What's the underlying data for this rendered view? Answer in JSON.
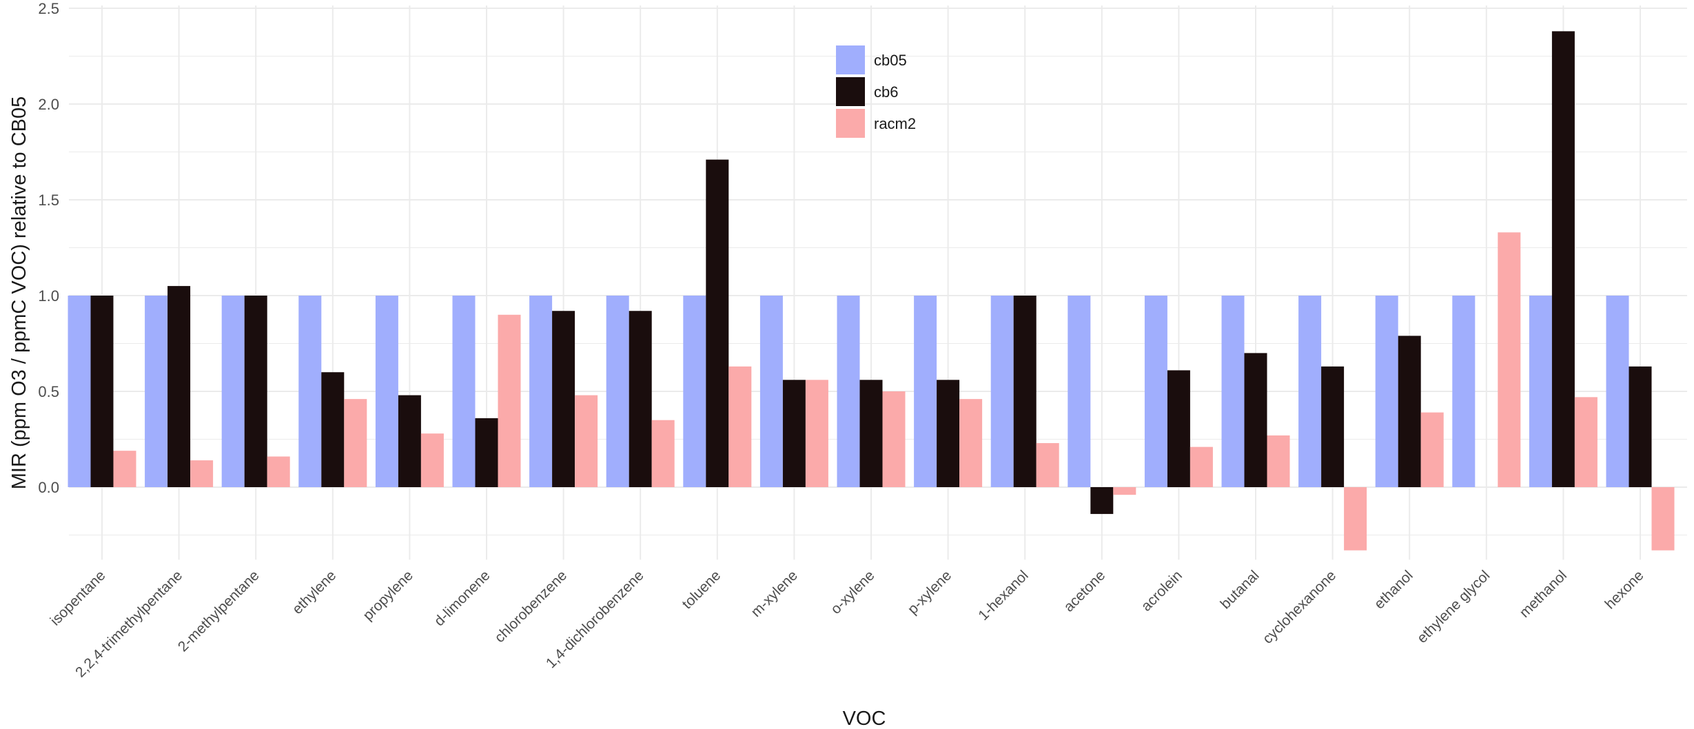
{
  "chart_data": {
    "type": "bar",
    "title": "",
    "xlabel": "VOC",
    "ylabel": "MIR (ppm O3 / ppmC VOC) relative to CB05",
    "ylim": [
      -0.35,
      2.5
    ],
    "yticks": [
      "0.0",
      "0.5",
      "1.0",
      "1.5",
      "2.0",
      "2.5"
    ],
    "grid": true,
    "legend_position": "top-center",
    "categories": [
      "isopentane",
      "2,2,4-trimethylpentane",
      "2-methylpentane",
      "ethylene",
      "propylene",
      "d-limonene",
      "chlorobenzene",
      "1,4-dichlorobenzene",
      "toluene",
      "m-xylene",
      "o-xylene",
      "p-xylene",
      "1-hexanol",
      "acetone",
      "acrolein",
      "butanal",
      "cyclohexanone",
      "ethanol",
      "ethylene glycol",
      "methanol",
      "hexone"
    ],
    "series": [
      {
        "name": "cb05",
        "color": "#a0aefd",
        "values": [
          1.0,
          1.0,
          1.0,
          1.0,
          1.0,
          1.0,
          1.0,
          1.0,
          1.0,
          1.0,
          1.0,
          1.0,
          1.0,
          1.0,
          1.0,
          1.0,
          1.0,
          1.0,
          1.0,
          1.0,
          1.0
        ]
      },
      {
        "name": "cb6",
        "color": "#1a0d0d",
        "values": [
          1.0,
          1.05,
          1.0,
          0.6,
          0.48,
          0.36,
          0.92,
          0.92,
          1.71,
          0.56,
          0.56,
          0.56,
          1.0,
          -0.14,
          0.61,
          0.7,
          0.63,
          0.79,
          0.0,
          2.38,
          0.63
        ]
      },
      {
        "name": "racm2",
        "color": "#fbaaaa",
        "values": [
          0.19,
          0.14,
          0.16,
          0.46,
          0.28,
          0.9,
          0.48,
          0.35,
          0.63,
          0.56,
          0.5,
          0.46,
          0.23,
          -0.04,
          0.21,
          0.27,
          -0.33,
          0.39,
          1.33,
          0.47,
          -0.33
        ]
      }
    ]
  }
}
